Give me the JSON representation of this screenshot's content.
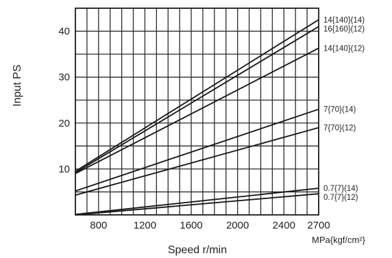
{
  "chart_data": {
    "type": "line",
    "title": "",
    "xlabel": "Speed r/min",
    "ylabel": "Input PS",
    "unit_label": "MPa{kgf/cm²}",
    "xlim": [
      600,
      2700
    ],
    "ylim": [
      0,
      45
    ],
    "grid": true,
    "x_ticks": [
      800,
      1200,
      1600,
      2000,
      2400,
      2700
    ],
    "y_ticks": [
      10,
      20,
      30,
      40
    ],
    "series": [
      {
        "name": "14{140}(14)",
        "x": [
          600,
          2700
        ],
        "y": [
          9.5,
          42.5
        ]
      },
      {
        "name": "16{160}(12)",
        "x": [
          600,
          2700
        ],
        "y": [
          9.2,
          41.0
        ]
      },
      {
        "name": "14{140}(12)",
        "x": [
          600,
          2700
        ],
        "y": [
          9.0,
          36.3
        ]
      },
      {
        "name": "7{70}(14)",
        "x": [
          600,
          2700
        ],
        "y": [
          5.2,
          23.0
        ]
      },
      {
        "name": "7{70}(12)",
        "x": [
          600,
          2700
        ],
        "y": [
          4.3,
          19.0
        ]
      },
      {
        "name": "0.7{7}(14)",
        "x": [
          600,
          2700
        ],
        "y": [
          0.1,
          5.8
        ]
      },
      {
        "name": "0.7{7}(12)",
        "x": [
          600,
          2700
        ],
        "y": [
          0.0,
          4.6
        ]
      }
    ]
  }
}
